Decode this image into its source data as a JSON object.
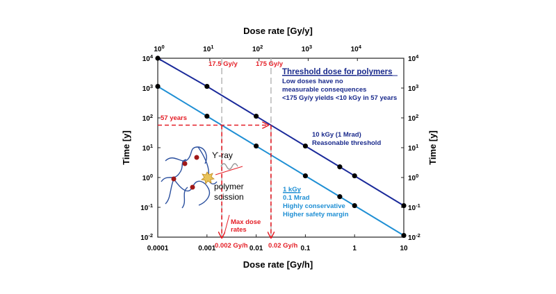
{
  "chart_data": {
    "type": "line",
    "scale": "log-log",
    "x_bottom": {
      "label": "Dose rate  [Gy/h]",
      "range": [
        0.0001,
        10
      ],
      "ticks": [
        {
          "v": 0.0001,
          "t": "0.0001"
        },
        {
          "v": 0.001,
          "t": "0.001"
        },
        {
          "v": 0.01,
          "t": "0.01"
        },
        {
          "v": 0.1,
          "t": "0.1"
        },
        {
          "v": 1,
          "t": "1"
        },
        {
          "v": 10,
          "t": "10"
        }
      ]
    },
    "x_top": {
      "label": "Dose rate [Gy/y]",
      "ticks": [
        {
          "gyh": 0.000114,
          "base": "10",
          "exp": "0"
        },
        {
          "gyh": 0.00114,
          "base": "10",
          "exp": "1"
        },
        {
          "gyh": 0.0114,
          "base": "10",
          "exp": "2"
        },
        {
          "gyh": 0.114,
          "base": "10",
          "exp": "3"
        },
        {
          "gyh": 1.14,
          "base": "10",
          "exp": "4"
        }
      ]
    },
    "y": {
      "label": "Time [y]",
      "range": [
        0.01,
        10000
      ],
      "ticks": [
        {
          "v": 10000,
          "base": "10",
          "exp": "4"
        },
        {
          "v": 1000,
          "base": "10",
          "exp": "3"
        },
        {
          "v": 100,
          "base": "10",
          "exp": "2"
        },
        {
          "v": 10,
          "base": "10",
          "exp": "1"
        },
        {
          "v": 1,
          "base": "10",
          "exp": "0"
        },
        {
          "v": 0.1,
          "base": "10",
          "exp": "-1"
        },
        {
          "v": 0.01,
          "base": "10",
          "exp": "-2"
        }
      ]
    },
    "series": [
      {
        "name": "10 kGy (1 Mrad)",
        "color": "#1a2a9a",
        "points": [
          [
            0.0001,
            11400
          ],
          [
            0.001,
            1140
          ],
          [
            0.01,
            114
          ],
          [
            0.1,
            11.4
          ],
          [
            0.5,
            2.28
          ],
          [
            1,
            1.14
          ],
          [
            10,
            0.114
          ]
        ]
      },
      {
        "name": "1 kGy",
        "color": "#1f8fd4",
        "points": [
          [
            0.0001,
            1140
          ],
          [
            0.001,
            114
          ],
          [
            0.01,
            11.4
          ],
          [
            0.1,
            1.14
          ],
          [
            0.5,
            0.228
          ],
          [
            1,
            0.114
          ],
          [
            10,
            0.0114
          ]
        ]
      }
    ],
    "vlines_gray": [
      0.002,
      0.02
    ],
    "guide_57y": {
      "time": 57,
      "x_end": 0.02,
      "x_branch": 0.002
    },
    "annotations": {
      "rate_175_label": "17.5 Gy/y",
      "rate_1750_label": "175 Gy/y",
      "years_label": "57 years",
      "threshold_title": "Threshold dose for polymers",
      "threshold_lines": [
        "Low doses have no",
        "measurable consequences",
        "<175 Gy/y yields <10 kGy in 57 years"
      ],
      "series1_lines": [
        "10 kGy (1 Mrad)",
        "Reasonable threshold"
      ],
      "series2_title": "1 kGy",
      "series2_lines": [
        "0.1 Mrad",
        "Highly conservative",
        "Higher safety margin"
      ],
      "max_dose_lines": [
        "Max dose",
        "rates"
      ],
      "gyh_002": "0.002 Gy/h",
      "gyh_02": "0.02 Gy/h",
      "gamma_label": "ϒ-ray",
      "polymer_lines": [
        "polymer",
        "scission"
      ]
    }
  }
}
